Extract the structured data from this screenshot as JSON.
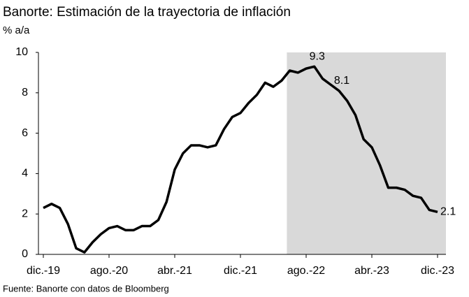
{
  "chart_data": {
    "type": "line",
    "title": "Banorte: Estimación de la trayectoria de inflación",
    "subtitle": "% a/a",
    "source": "Fuente: Banorte con datos de Bloomberg",
    "categories": [
      "dic.-19",
      null,
      null,
      null,
      null,
      null,
      null,
      null,
      "ago.-20",
      null,
      null,
      null,
      null,
      null,
      null,
      null,
      "abr.-21",
      null,
      null,
      null,
      null,
      null,
      null,
      null,
      "dic.-21",
      null,
      null,
      null,
      null,
      null,
      null,
      null,
      "ago.-22",
      null,
      null,
      null,
      null,
      null,
      null,
      null,
      "abr.-23",
      null,
      null,
      null,
      null,
      null,
      null,
      null,
      "dic.-23"
    ],
    "series": [
      {
        "name": "Inflación",
        "color": "#000000",
        "values": [
          2.3,
          2.5,
          2.3,
          1.5,
          0.3,
          0.1,
          0.6,
          1.0,
          1.3,
          1.4,
          1.2,
          1.2,
          1.4,
          1.4,
          1.7,
          2.6,
          4.2,
          5.0,
          5.4,
          5.4,
          5.3,
          5.4,
          6.2,
          6.8,
          7.0,
          7.5,
          7.9,
          8.5,
          8.3,
          8.6,
          9.1,
          9.0,
          9.2,
          9.3,
          8.7,
          8.4,
          8.1,
          7.6,
          6.9,
          5.7,
          5.3,
          4.4,
          3.3,
          3.3,
          3.2,
          2.9,
          2.8,
          2.2,
          2.1
        ]
      }
    ],
    "labeled_points": [
      33,
      36,
      48
    ],
    "shade_start_index": 30,
    "shade_color": "#d9d9d9",
    "ylim": [
      0,
      10
    ],
    "yticks": [
      0,
      2,
      4,
      6,
      8,
      10
    ]
  }
}
